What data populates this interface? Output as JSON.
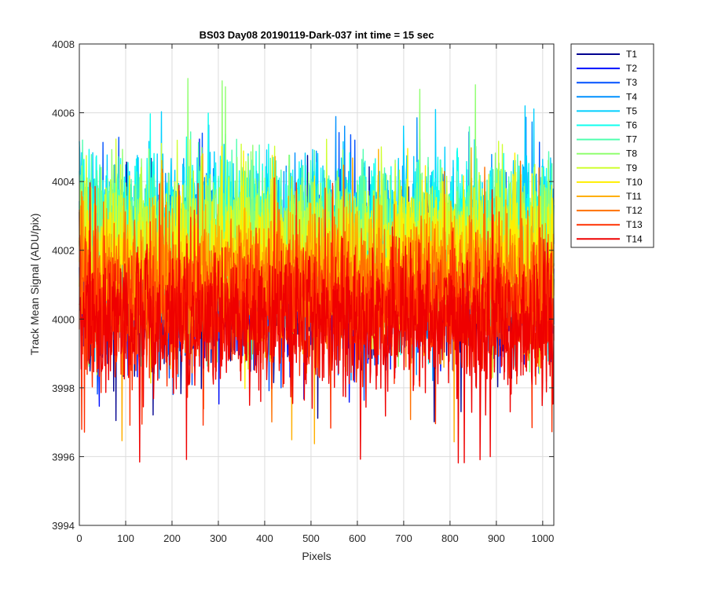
{
  "chart_data": {
    "type": "line",
    "title": "BS03 Day08 20190119-Dark-037 int time = 15 sec",
    "xlabel": "Pixels",
    "ylabel": "Track Mean Signal (ADU/pix)",
    "xlim": [
      0,
      1024
    ],
    "ylim": [
      3994,
      4008
    ],
    "xticks": [
      0,
      100,
      200,
      300,
      400,
      500,
      600,
      700,
      800,
      900,
      1000
    ],
    "yticks": [
      3994,
      3996,
      3998,
      4000,
      4002,
      4004,
      4006,
      4008
    ],
    "grid": true,
    "legend_position": "outside-right-top",
    "n_points": 1024,
    "series": [
      {
        "name": "T1",
        "color": "#00008f",
        "mean": 4000.9,
        "spread": 1.15,
        "min": 3997.0,
        "max": 4004.8
      },
      {
        "name": "T2",
        "color": "#0010ff",
        "mean": 4001.1,
        "spread": 1.1,
        "min": 3997.3,
        "max": 4005.3
      },
      {
        "name": "T3",
        "color": "#0050ff",
        "mean": 4001.3,
        "spread": 1.1,
        "min": 3997.6,
        "max": 4005.5
      },
      {
        "name": "T4",
        "color": "#0090ff",
        "mean": 4002.0,
        "spread": 1.1,
        "min": 3998.0,
        "max": 4006.0
      },
      {
        "name": "T5",
        "color": "#00cfff",
        "mean": 4002.6,
        "spread": 1.05,
        "min": 3998.5,
        "max": 4006.4
      },
      {
        "name": "T6",
        "color": "#10ffef",
        "mean": 4002.7,
        "spread": 1.0,
        "min": 3998.6,
        "max": 4006.0
      },
      {
        "name": "T7",
        "color": "#50ffaf",
        "mean": 4002.5,
        "spread": 1.0,
        "min": 3998.5,
        "max": 4005.8
      },
      {
        "name": "T8",
        "color": "#90ff70",
        "mean": 4002.3,
        "spread": 1.0,
        "min": 3998.4,
        "max": 4007.0
      },
      {
        "name": "T9",
        "color": "#cfff30",
        "mean": 4002.0,
        "spread": 1.0,
        "min": 3998.2,
        "max": 4005.4
      },
      {
        "name": "T10",
        "color": "#ffef00",
        "mean": 4001.6,
        "spread": 1.0,
        "min": 3997.9,
        "max": 4005.1
      },
      {
        "name": "T11",
        "color": "#ffaf00",
        "mean": 4001.2,
        "spread": 1.0,
        "min": 3996.2,
        "max": 4005.0
      },
      {
        "name": "T12",
        "color": "#ff7000",
        "mean": 4000.9,
        "spread": 1.0,
        "min": 3997.0,
        "max": 4004.6
      },
      {
        "name": "T13",
        "color": "#ff3000",
        "mean": 4000.3,
        "spread": 1.0,
        "min": 3996.6,
        "max": 4004.2
      },
      {
        "name": "T14",
        "color": "#ef0000",
        "mean": 3999.9,
        "spread": 1.0,
        "min": 3995.8,
        "max": 4004.0
      }
    ]
  }
}
